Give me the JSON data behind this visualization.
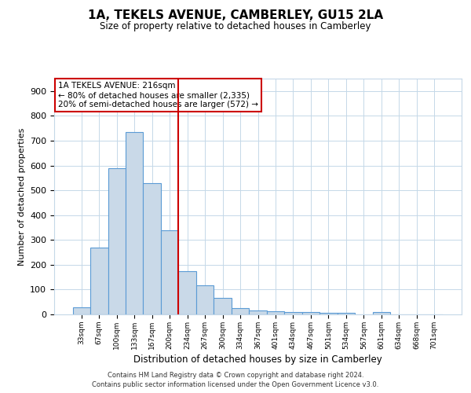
{
  "title": "1A, TEKELS AVENUE, CAMBERLEY, GU15 2LA",
  "subtitle": "Size of property relative to detached houses in Camberley",
  "xlabel": "Distribution of detached houses by size in Camberley",
  "ylabel": "Number of detached properties",
  "categories": [
    "33sqm",
    "67sqm",
    "100sqm",
    "133sqm",
    "167sqm",
    "200sqm",
    "234sqm",
    "267sqm",
    "300sqm",
    "334sqm",
    "367sqm",
    "401sqm",
    "434sqm",
    "467sqm",
    "501sqm",
    "534sqm",
    "567sqm",
    "601sqm",
    "634sqm",
    "668sqm",
    "701sqm"
  ],
  "values": [
    27,
    270,
    590,
    735,
    530,
    340,
    175,
    118,
    67,
    25,
    15,
    13,
    10,
    8,
    7,
    6,
    1,
    8,
    0,
    0,
    0
  ],
  "bar_color": "#c9d9e8",
  "bar_edge_color": "#5b9bd5",
  "vline_color": "#cc0000",
  "vline_pos": 5.5,
  "annotation_text": "1A TEKELS AVENUE: 216sqm\n← 80% of detached houses are smaller (2,335)\n20% of semi-detached houses are larger (572) →",
  "annotation_box_color": "#ffffff",
  "annotation_box_edge_color": "#cc0000",
  "ylim": [
    0,
    950
  ],
  "yticks": [
    0,
    100,
    200,
    300,
    400,
    500,
    600,
    700,
    800,
    900
  ],
  "footer": "Contains HM Land Registry data © Crown copyright and database right 2024.\nContains public sector information licensed under the Open Government Licence v3.0.",
  "background_color": "#ffffff",
  "grid_color": "#c5d8e8"
}
